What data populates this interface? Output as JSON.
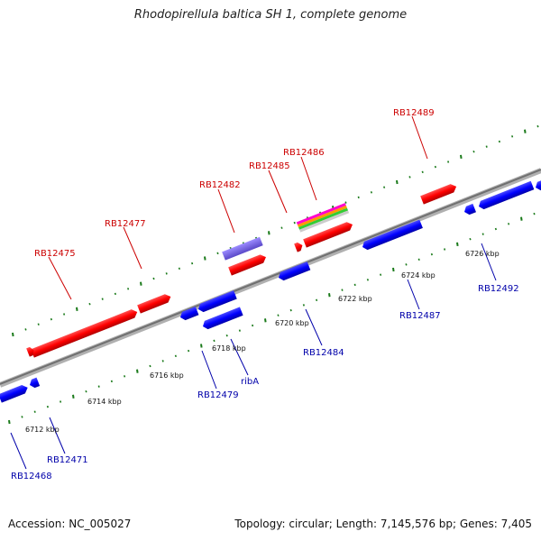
{
  "title": "Rhodopirellula baltica SH 1, complete genome",
  "accession": "Accession: NC_005027",
  "stats": "Topology: circular; Length: 7,145,576 bp; Genes: 7,405",
  "colors": {
    "forward_gene": "#ff0000",
    "reverse_gene": "#0000ff",
    "misc_feature": "#7b68ee",
    "forward_label": "#cc0000",
    "reverse_label": "#0000aa",
    "backbone": "#888888",
    "tick": "#1a7a1a"
  },
  "scale_labels": [
    {
      "text": "6712 kbp",
      "kbp": 6712
    },
    {
      "text": "6714 kbp",
      "kbp": 6714
    },
    {
      "text": "6716 kbp",
      "kbp": 6716
    },
    {
      "text": "6718 kbp",
      "kbp": 6718
    },
    {
      "text": "6720 kbp",
      "kbp": 6720
    },
    {
      "text": "6722 kbp",
      "kbp": 6722
    },
    {
      "text": "6724 kbp",
      "kbp": 6724
    },
    {
      "text": "6726 kbp",
      "kbp": 6726
    }
  ],
  "forward_genes": [
    {
      "label": "RB12475"
    },
    {
      "label": "RB12477"
    },
    {
      "label": "RB12482"
    },
    {
      "label": "RB12485"
    },
    {
      "label": "RB12486"
    },
    {
      "label": "RB12489"
    }
  ],
  "reverse_genes": [
    {
      "label": "RB12468"
    },
    {
      "label": "RB12471"
    },
    {
      "label": "RB12479"
    },
    {
      "label": "ribA"
    },
    {
      "label": "RB12484"
    },
    {
      "label": "RB12487"
    },
    {
      "label": "RB12492"
    }
  ]
}
